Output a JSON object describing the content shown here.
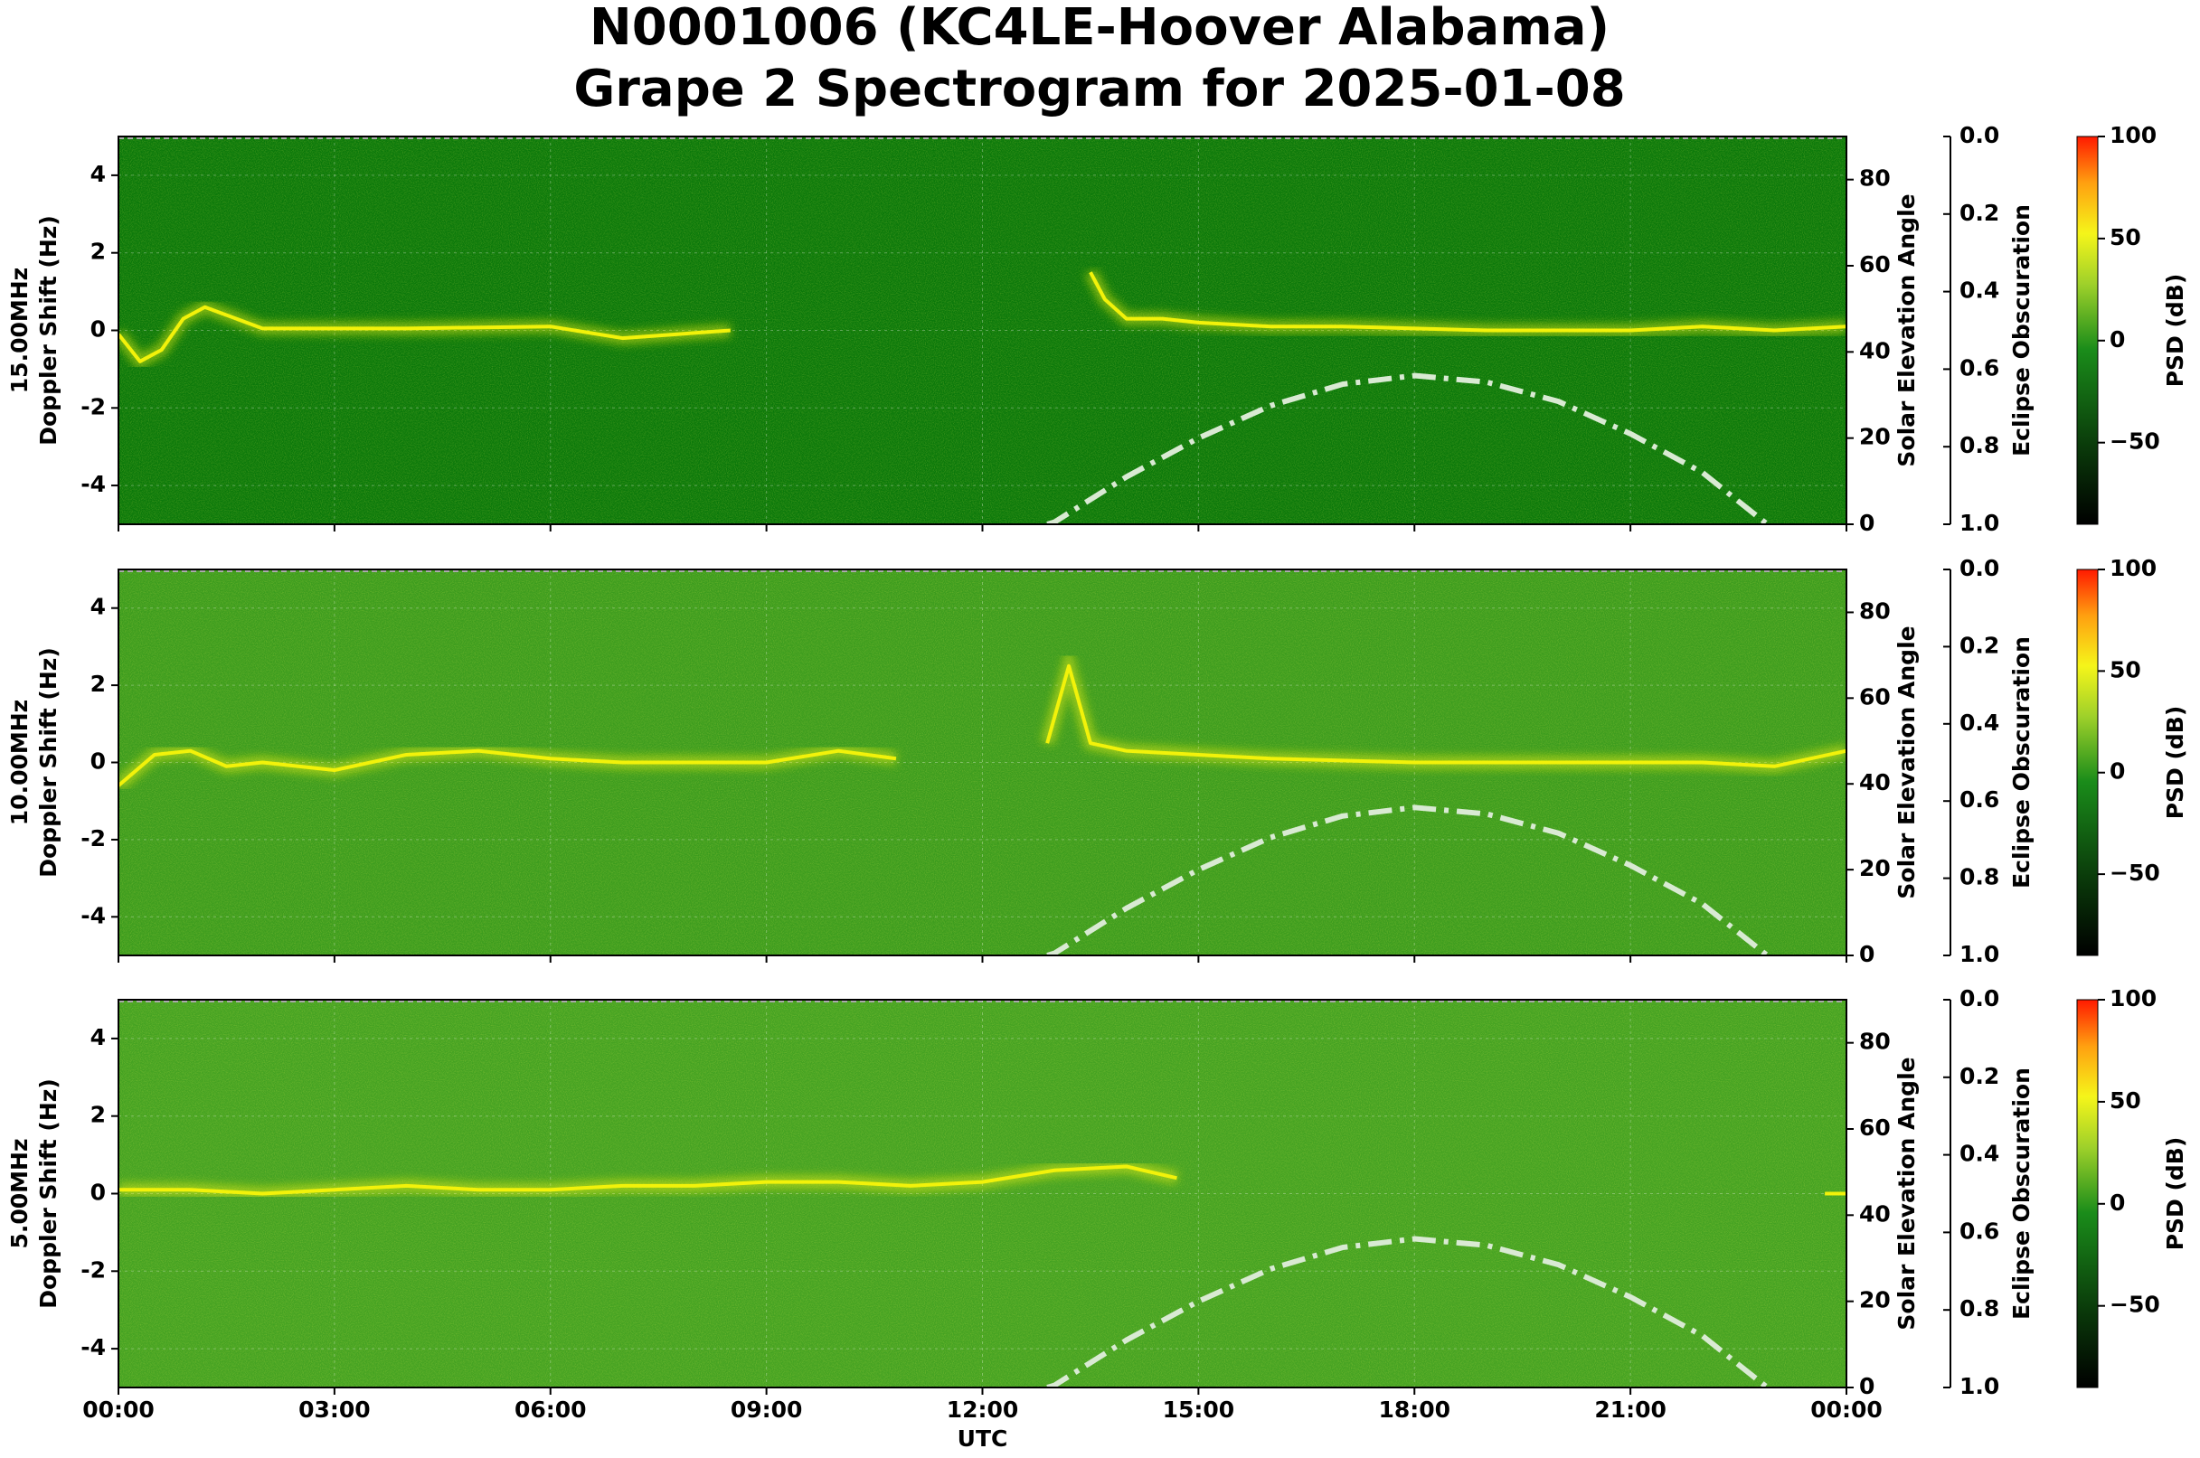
{
  "title": "N0001006 (KC4LE-Hoover Alabama)",
  "subtitle": "Grape 2 Spectrogram for 2025-01-08",
  "chart_data": [
    {
      "type": "spectrogram",
      "freq_label": "15.00MHz",
      "ylabel": "Doppler Shift (Hz)",
      "y2label": "Solar Elevation Angle",
      "y3label": "Eclipse Obscuration",
      "clabel": "PSD (dB)",
      "background": "#0a780a",
      "grid": true,
      "xlim": [
        0,
        24
      ],
      "xticks": [
        {
          "value": 0,
          "label": "00:00"
        },
        {
          "value": 3,
          "label": "03:00"
        },
        {
          "value": 6,
          "label": "06:00"
        },
        {
          "value": 9,
          "label": "09:00"
        },
        {
          "value": 12,
          "label": "12:00"
        },
        {
          "value": 15,
          "label": "15:00"
        },
        {
          "value": 18,
          "label": "18:00"
        },
        {
          "value": 21,
          "label": "21:00"
        },
        {
          "value": 24,
          "label": "00:00"
        }
      ],
      "ylim": [
        -5,
        5
      ],
      "yticks": [
        -4,
        -2,
        0,
        2,
        4
      ],
      "y2lim": [
        0,
        90
      ],
      "y2ticks": [
        0,
        20,
        40,
        60,
        80
      ],
      "y3lim": [
        1,
        0
      ],
      "y3ticks": [
        {
          "value": 0,
          "label": "0.0"
        },
        0.2,
        0.4,
        0.6,
        0.8,
        {
          "value": 1,
          "label": "1.0"
        }
      ],
      "clim": [
        -90,
        100
      ],
      "cticks": [
        {
          "value": -50,
          "label": "−50"
        },
        0,
        50,
        100
      ],
      "doppler_trace": {
        "color": "#f2f20a",
        "x": [
          0,
          0.3,
          0.6,
          0.9,
          1.2,
          2,
          4,
          6,
          7,
          8.5,
          11,
          13.5,
          13.7,
          14,
          14.5,
          15,
          16,
          17,
          18,
          19,
          20,
          21,
          22,
          23,
          24
        ],
        "values": [
          -0.1,
          -0.8,
          -0.5,
          0.3,
          0.6,
          0.05,
          0.05,
          0.1,
          -0.2,
          0,
          null,
          1.5,
          0.8,
          0.3,
          0.3,
          0.2,
          0.1,
          0.1,
          0.05,
          0,
          0,
          0,
          0.1,
          0,
          0.1
        ]
      },
      "solar_elevation": {
        "color": "#d9ead3",
        "x": [
          12.9,
          13,
          14,
          15,
          16,
          17,
          18,
          19,
          20,
          21,
          22,
          22.9
        ],
        "values": [
          0,
          0.5,
          11,
          20,
          27.5,
          32.5,
          34.5,
          33,
          28.5,
          21,
          12,
          0
        ]
      }
    },
    {
      "type": "spectrogram",
      "freq_label": "10.00MHz",
      "ylabel": "Doppler Shift (Hz)",
      "y2label": "Solar Elevation Angle",
      "y3label": "Eclipse Obscuration",
      "clabel": "PSD (dB)",
      "background": "#3c9c1e",
      "grid": true,
      "xlim": [
        0,
        24
      ],
      "xticks": [
        {
          "value": 0,
          "label": "00:00"
        },
        {
          "value": 3,
          "label": "03:00"
        },
        {
          "value": 6,
          "label": "06:00"
        },
        {
          "value": 9,
          "label": "09:00"
        },
        {
          "value": 12,
          "label": "12:00"
        },
        {
          "value": 15,
          "label": "15:00"
        },
        {
          "value": 18,
          "label": "18:00"
        },
        {
          "value": 21,
          "label": "21:00"
        },
        {
          "value": 24,
          "label": "00:00"
        }
      ],
      "ylim": [
        -5,
        5
      ],
      "yticks": [
        -4,
        -2,
        0,
        2,
        4
      ],
      "y2lim": [
        0,
        90
      ],
      "y2ticks": [
        0,
        20,
        40,
        60,
        80
      ],
      "y3lim": [
        1,
        0
      ],
      "y3ticks": [
        {
          "value": 0,
          "label": "0.0"
        },
        0.2,
        0.4,
        0.6,
        0.8,
        {
          "value": 1,
          "label": "1.0"
        }
      ],
      "clim": [
        -90,
        100
      ],
      "cticks": [
        {
          "value": -50,
          "label": "−50"
        },
        0,
        50,
        100
      ],
      "doppler_trace": {
        "color": "#f2f20a",
        "x": [
          0,
          0.5,
          1,
          1.5,
          2,
          3,
          4,
          5,
          6,
          7,
          8,
          9,
          10,
          10.8,
          12,
          12.9,
          13.2,
          13.5,
          14,
          15,
          16,
          17,
          18,
          19,
          20,
          21,
          22,
          23,
          24
        ],
        "values": [
          -0.6,
          0.2,
          0.3,
          -0.1,
          0,
          -0.2,
          0.2,
          0.3,
          0.1,
          0,
          0,
          0,
          0.3,
          0.1,
          null,
          0.5,
          2.5,
          0.5,
          0.3,
          0.2,
          0.1,
          0.05,
          0,
          0,
          0,
          0,
          0,
          -0.1,
          0.3
        ]
      },
      "solar_elevation": {
        "color": "#d9ead3",
        "x": [
          12.9,
          13,
          14,
          15,
          16,
          17,
          18,
          19,
          20,
          21,
          22,
          22.9
        ],
        "values": [
          0,
          0.5,
          11,
          20,
          27.5,
          32.5,
          34.5,
          33,
          28.5,
          21,
          12,
          0
        ]
      }
    },
    {
      "type": "spectrogram",
      "freq_label": "5.00MHz",
      "ylabel": "Doppler Shift (Hz)",
      "y2label": "Solar Elevation Angle",
      "y3label": "Eclipse Obscuration",
      "clabel": "PSD (dB)",
      "background": "#44a222",
      "grid": true,
      "xlabel": "UTC",
      "xlim": [
        0,
        24
      ],
      "xticks": [
        {
          "value": 0,
          "label": "00:00"
        },
        {
          "value": 3,
          "label": "03:00"
        },
        {
          "value": 6,
          "label": "06:00"
        },
        {
          "value": 9,
          "label": "09:00"
        },
        {
          "value": 12,
          "label": "12:00"
        },
        {
          "value": 15,
          "label": "15:00"
        },
        {
          "value": 18,
          "label": "18:00"
        },
        {
          "value": 21,
          "label": "21:00"
        },
        {
          "value": 24,
          "label": "00:00"
        }
      ],
      "ylim": [
        -5,
        5
      ],
      "yticks": [
        -4,
        -2,
        0,
        2,
        4
      ],
      "y2lim": [
        0,
        90
      ],
      "y2ticks": [
        0,
        20,
        40,
        60,
        80
      ],
      "y3lim": [
        1,
        0
      ],
      "y3ticks": [
        {
          "value": 0,
          "label": "0.0"
        },
        0.2,
        0.4,
        0.6,
        0.8,
        {
          "value": 1,
          "label": "1.0"
        }
      ],
      "clim": [
        -90,
        100
      ],
      "cticks": [
        {
          "value": -50,
          "label": "−50"
        },
        0,
        50,
        100
      ],
      "doppler_trace": {
        "color": "#f2f20a",
        "x": [
          0,
          1,
          2,
          3,
          4,
          5,
          6,
          7,
          8,
          9,
          10,
          11,
          12,
          13,
          14,
          14.7,
          16,
          23.7,
          24
        ],
        "values": [
          0.1,
          0.1,
          0,
          0.1,
          0.2,
          0.1,
          0.1,
          0.2,
          0.2,
          0.3,
          0.3,
          0.2,
          0.3,
          0.6,
          0.7,
          0.4,
          null,
          0,
          0
        ]
      },
      "solar_elevation": {
        "color": "#d9ead3",
        "x": [
          12.9,
          13,
          14,
          15,
          16,
          17,
          18,
          19,
          20,
          21,
          22,
          22.9
        ],
        "values": [
          0,
          0.5,
          11,
          20,
          27.5,
          32.5,
          34.5,
          33,
          28.5,
          21,
          12,
          0
        ]
      }
    }
  ]
}
